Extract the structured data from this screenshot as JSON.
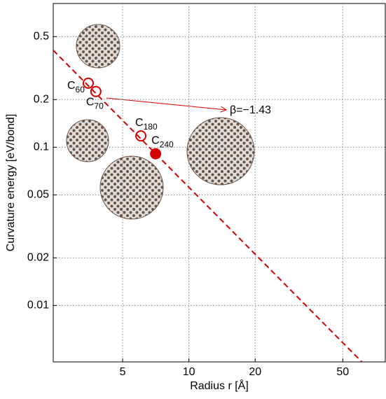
{
  "chart_data": {
    "type": "scatter",
    "x_label": "Radius r [Å]",
    "y_label": "Curvature energy [eV/bond]",
    "log_x": true,
    "log_y": true,
    "grid": true,
    "xlim": [
      2.42,
      78
    ],
    "ylim": [
      0.0044,
      0.81
    ],
    "xticks": [
      5,
      10,
      20,
      50
    ],
    "yticks": [
      0.01,
      0.02,
      0.05,
      0.1,
      0.2,
      0.5
    ],
    "series": [
      {
        "marker": "open",
        "color": "#d40000",
        "x": [
          3.49,
          3.78,
          6.05
        ],
        "values": [
          0.254,
          0.225,
          0.118
        ],
        "labels": [
          "C60",
          "C70",
          "C180"
        ]
      },
      {
        "marker": "filled",
        "color": "#d40000",
        "x": [
          7.06
        ],
        "values": [
          0.091
        ],
        "labels": [
          "C240"
        ]
      },
      {
        "marker": "dashed-line",
        "color": "#d40000",
        "x": [
          2.42,
          61
        ],
        "values": [
          0.41,
          0.0044
        ]
      }
    ],
    "annotation": "β=−1.43"
  }
}
